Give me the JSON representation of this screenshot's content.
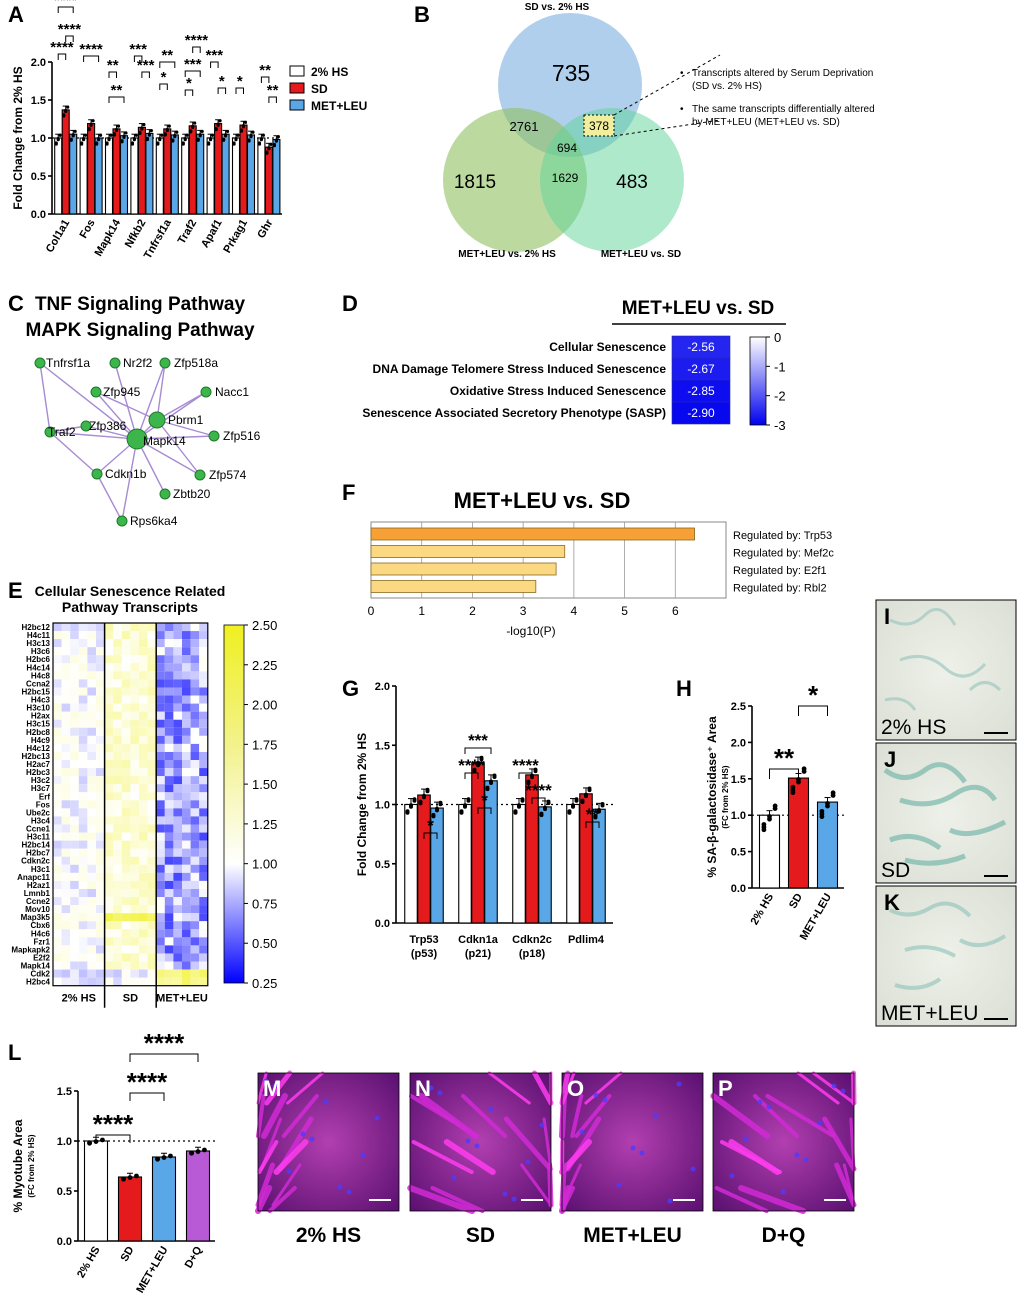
{
  "colors": {
    "hs": "#ffffff",
    "sd": "#e41a1c",
    "ml": "#5aa7e8",
    "dq": "#b85ad6",
    "orange": "#f7a035",
    "lightorange": "#fbd982"
  },
  "panels": {
    "A": {
      "letter": "A"
    },
    "B": {
      "letter": "B"
    },
    "C": {
      "letter": "C"
    },
    "D": {
      "letter": "D"
    },
    "E": {
      "letter": "E"
    },
    "F": {
      "letter": "F"
    },
    "G": {
      "letter": "G"
    },
    "H": {
      "letter": "H"
    },
    "I": {
      "letter": "I",
      "label": "2% HS"
    },
    "J": {
      "letter": "J",
      "label": "SD"
    },
    "K": {
      "letter": "K",
      "label": "MET+LEU"
    },
    "L": {
      "letter": "L"
    },
    "M": {
      "letter": "M",
      "label": "2% HS"
    },
    "N": {
      "letter": "N",
      "label": "SD"
    },
    "O": {
      "letter": "O",
      "label": "MET+LEU"
    },
    "P": {
      "letter": "P",
      "label": "D+Q"
    }
  },
  "chart_data": [
    {
      "id": "A",
      "type": "bar",
      "ylabel": "Fold Change from 2% HS",
      "ylim": [
        0,
        2.0
      ],
      "yticks": [
        "0.0",
        "0.5",
        "1.0",
        "1.5",
        "2.0"
      ],
      "categories": [
        "Col1a1",
        "Fos",
        "Mapk14",
        "Nfkb2",
        "Tnfrsf1a",
        "Traf2",
        "Apaf1",
        "Prkag1",
        "Ghr"
      ],
      "series": [
        {
          "name": "2% HS",
          "values": [
            1.0,
            1.0,
            1.0,
            1.0,
            1.0,
            1.0,
            1.0,
            1.0,
            1.0
          ]
        },
        {
          "name": "SD",
          "values": [
            1.37,
            1.19,
            1.12,
            1.14,
            1.12,
            1.16,
            1.19,
            1.17,
            0.88
          ]
        },
        {
          "name": "MET+LEU",
          "values": [
            1.05,
            1.0,
            1.03,
            1.06,
            1.04,
            1.05,
            1.05,
            1.04,
            0.98
          ]
        }
      ],
      "legend": [
        "2% HS",
        "SD",
        "MET+LEU"
      ],
      "significance": [
        "****",
        "****",
        "****",
        "****",
        "**",
        "***",
        "**",
        "***",
        "*",
        "**",
        "*",
        "****",
        "*",
        "***",
        "*",
        "***",
        "**",
        "**"
      ]
    },
    {
      "id": "B",
      "type": "venn",
      "sets": [
        "SD vs. 2% HS",
        "MET+LEU vs. 2% HS",
        "MET+LEU vs. SD"
      ],
      "counts": {
        "sd_only": "735",
        "ml_only": "1815",
        "mlsd_only": "483",
        "sd_ml": "2761",
        "sd_mlsd": "378",
        "ml_mlsd": "1629",
        "all": "694"
      },
      "notes": [
        "Transcripts altered by Serum Deprivation",
        "(SD vs. 2% HS)",
        "The same transcripts differentially altered",
        "by MET+LEU (MET+LEU vs. SD)"
      ]
    },
    {
      "id": "C",
      "type": "network",
      "title": [
        "TNF Signaling Pathway",
        "MAPK Signaling Pathway"
      ],
      "nodes": [
        "Tnfrsf1a",
        "Nr2f2",
        "Zfp518a",
        "Zfp945",
        "Nacc1",
        "Pbrm1",
        "Zfp386",
        "Traf2",
        "Mapk14",
        "Zfp516",
        "Cdkn1b",
        "Zfp574",
        "Zbtb20",
        "Rps6ka4"
      ]
    },
    {
      "id": "D",
      "type": "heatmap",
      "title": "MET+LEU vs. SD",
      "rows": [
        "Cellular Senescence",
        "DNA Damage Telomere Stress Induced Senescence",
        "Oxidative Stress Induced Senescence",
        "Senescence Associated Secretory Phenotype (SASP)"
      ],
      "values": [
        -2.56,
        -2.67,
        -2.85,
        -2.9
      ],
      "value_labels": [
        "-2.56",
        "-2.67",
        "-2.85",
        "-2.90"
      ],
      "colorbar": [
        "0",
        "-1",
        "-2",
        "-3"
      ]
    },
    {
      "id": "E",
      "type": "heatmap",
      "title": [
        "Cellular  Senescence Related",
        "Pathway  Transcripts"
      ],
      "rows": [
        "H2bc12",
        "H4c11",
        "H3c13",
        "H3c6",
        "H2bc6",
        "H4c14",
        "H4c8",
        "Ccna2",
        "H2bc15",
        "H4c3",
        "H3c10",
        "H2ax",
        "H3c15",
        "H2bc8",
        "H4c9",
        "H4c12",
        "H2bc13",
        "H2ac7",
        "H2bc3",
        "H3c2",
        "H3c7",
        "Erf",
        "Fos",
        "Ube2c",
        "H3c4",
        "Ccne1",
        "H3c11",
        "H2bc14",
        "H2bc7",
        "Cdkn2c",
        "H3c1",
        "Anapc11",
        "H2az1",
        "Lmnb1",
        "Ccne2",
        "Mov10",
        "Map3k5",
        "Cbx6",
        "H4c6",
        "Fzr1",
        "Mapkapk2",
        "E2f2",
        "Mapk14",
        "Cdk2",
        "H2bc4"
      ],
      "groups": [
        "2% HS",
        "SD",
        "MET+LEU"
      ],
      "colorbar": [
        "2.50",
        "2.25",
        "2.00",
        "1.75",
        "1.50",
        "1.25",
        "1.00",
        "0.75",
        "0.50",
        "0.25"
      ],
      "range": [
        0.25,
        2.5
      ]
    },
    {
      "id": "F",
      "type": "bar",
      "title": "MET+LEU vs. SD",
      "xlabel": "-log10(P)",
      "xlim": [
        0,
        7
      ],
      "xticks": [
        "0",
        "1",
        "2",
        "3",
        "4",
        "5",
        "6"
      ],
      "categories": [
        "Regulated by: Trp53",
        "Regulated by: Mef2c",
        "Regulated by: E2f1",
        "Regulated by: Rbl2"
      ],
      "values": [
        6.38,
        3.82,
        3.65,
        3.25
      ]
    },
    {
      "id": "G",
      "type": "bar",
      "ylabel": "Fold Change from 2% HS",
      "ylim": [
        0,
        2.0
      ],
      "yticks": [
        "0.0",
        "0.5",
        "1.0",
        "1.5",
        "2.0"
      ],
      "categories": [
        "Trp53",
        "Cdkn1a",
        "Cdkn2c",
        "Pdlim4"
      ],
      "sublabels": [
        "(p53)",
        "(p21)",
        "(p18)",
        ""
      ],
      "series": [
        {
          "name": "2% HS",
          "values": [
            1.0,
            1.0,
            1.0,
            1.0
          ]
        },
        {
          "name": "SD",
          "values": [
            1.08,
            1.35,
            1.25,
            1.09
          ]
        },
        {
          "name": "MET+LEU",
          "values": [
            0.97,
            1.2,
            0.98,
            0.96
          ]
        }
      ],
      "significance": [
        "*",
        "***",
        "****",
        "*",
        "****",
        "****",
        "**"
      ]
    },
    {
      "id": "H",
      "type": "bar",
      "ylabel": "% SA-β-galactosidase⁺ Area",
      "ylabel2": "(FC from 2% HS)",
      "ylim": [
        0,
        2.5
      ],
      "yticks": [
        "0.0",
        "0.5",
        "1.0",
        "1.5",
        "2.0",
        "2.5"
      ],
      "categories": [
        "2% HS",
        "SD",
        "MET+LEU"
      ],
      "values": [
        1.0,
        1.51,
        1.18
      ],
      "significance": [
        "**",
        "*"
      ]
    },
    {
      "id": "L",
      "type": "bar",
      "ylabel": "% Myotube Area",
      "ylabel2": "(FC from 2% HS)",
      "ylim": [
        0,
        1.5
      ],
      "yticks": [
        "0.0",
        "0.5",
        "1.0",
        "1.5"
      ],
      "categories": [
        "2% HS",
        "SD",
        "MET+LEU",
        "D+Q"
      ],
      "values": [
        1.0,
        0.64,
        0.84,
        0.9
      ],
      "significance": [
        "****",
        "****",
        "****"
      ]
    }
  ]
}
